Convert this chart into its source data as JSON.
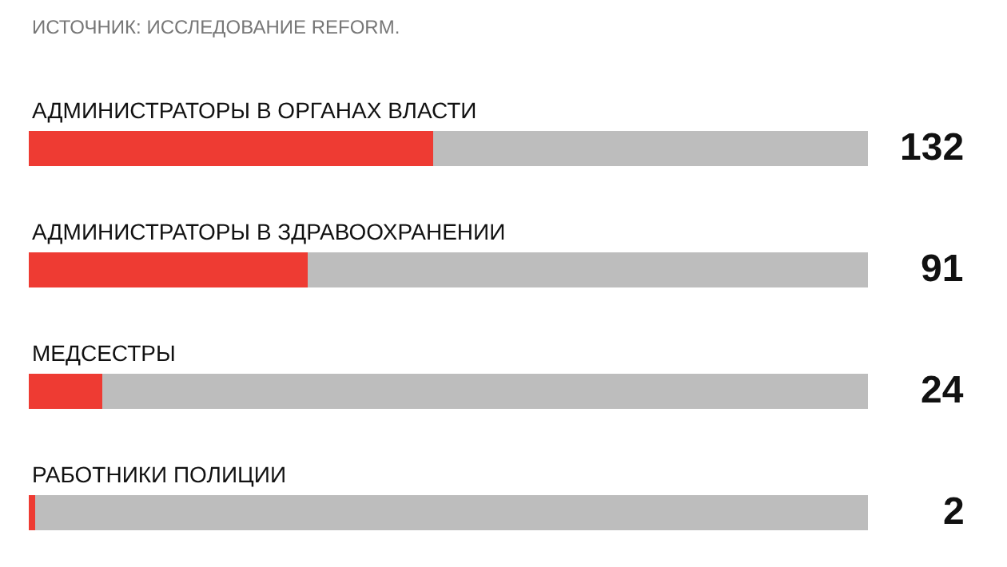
{
  "chart_data": {
    "type": "bar",
    "orientation": "horizontal",
    "stacked": true,
    "categories": [
      "АДМИНИСТРАТОРЫ В ОРГАНАХ ВЛАСТИ",
      "АДМИНИСТРАТОРЫ В ЗДРАВООХРАНЕНИИ",
      "МЕДСЕСТРЫ",
      "РАБОТНИКИ ПОЛИЦИИ"
    ],
    "series": [
      {
        "color": "#ee3b33",
        "values": [
          132,
          91,
          24,
          2
        ],
        "value_labels": [
          "132",
          "91",
          "24",
          "2"
        ]
      },
      {
        "color": "#bdbdbd",
        "values": [
          142,
          183,
          250,
          272
        ]
      }
    ],
    "xlim": [
      0,
      274
    ],
    "tick_labels": false,
    "annotations": [
      "ИСТОЧНИК: ИССЛЕДОВАНИЕ REFORM."
    ]
  }
}
